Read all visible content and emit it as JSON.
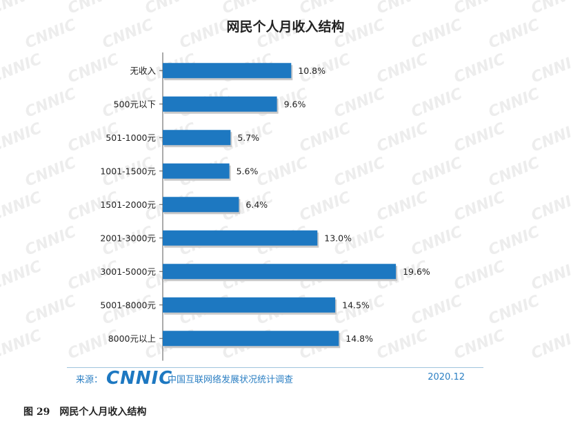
{
  "chart_data": {
    "type": "bar",
    "orientation": "horizontal",
    "title": "网民个人月收入结构",
    "categories": [
      "无收入",
      "500元以下",
      "501-1000元",
      "1001-1500元",
      "1501-2000元",
      "2001-3000元",
      "3001-5000元",
      "5001-8000元",
      "8000元以上"
    ],
    "values": [
      10.8,
      9.6,
      5.7,
      5.6,
      6.4,
      13.0,
      19.6,
      14.5,
      14.8
    ],
    "value_labels": [
      "10.8%",
      "9.6%",
      "5.7%",
      "5.6%",
      "6.4%",
      "13.0%",
      "19.6%",
      "14.5%",
      "14.8%"
    ],
    "xlim": [
      0,
      20
    ],
    "grid": false,
    "bar_color": "#1d78c1"
  },
  "footer": {
    "source_label": "来源：",
    "logo_text": "CNNIC",
    "org_name": "中国互联网络发展状况统计调查",
    "date": "2020.12"
  },
  "caption": {
    "figure_no": "图 29",
    "text": "网民个人月收入结构"
  },
  "watermark_text": "CNNIC"
}
